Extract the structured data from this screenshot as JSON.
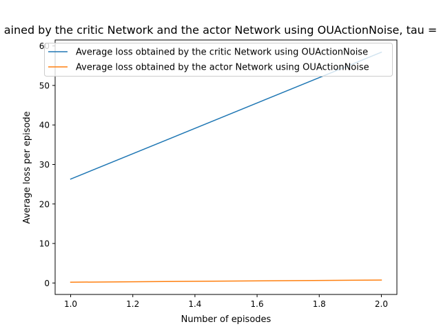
{
  "chart_data": {
    "type": "line",
    "title": "ained by the critic Network and the actor Network using OUActionNoise, tau =",
    "xlabel": "Number of episodes",
    "ylabel": "Average loss per episode",
    "xlim": [
      0.95,
      2.05
    ],
    "ylim": [
      -2.9,
      61.5
    ],
    "xticks": [
      1.0,
      1.2,
      1.4,
      1.6,
      1.8,
      2.0
    ],
    "xtick_labels": [
      "1.0",
      "1.2",
      "1.4",
      "1.6",
      "1.8",
      "2.0"
    ],
    "yticks": [
      0,
      10,
      20,
      30,
      40,
      50,
      60
    ],
    "ytick_labels": [
      "0",
      "10",
      "20",
      "30",
      "40",
      "50",
      "60"
    ],
    "grid": false,
    "legend_position": "top-right",
    "series": [
      {
        "name": "Average loss obtained by the critic Network using OUActionNoise",
        "color": "#1f77b4",
        "x": [
          1.0,
          2.0
        ],
        "y": [
          26.3,
          58.4
        ]
      },
      {
        "name": "Average loss obtained by the actor Network using OUActionNoise",
        "color": "#ff7f0e",
        "x": [
          1.0,
          2.0
        ],
        "y": [
          0.2,
          0.75
        ]
      }
    ]
  }
}
